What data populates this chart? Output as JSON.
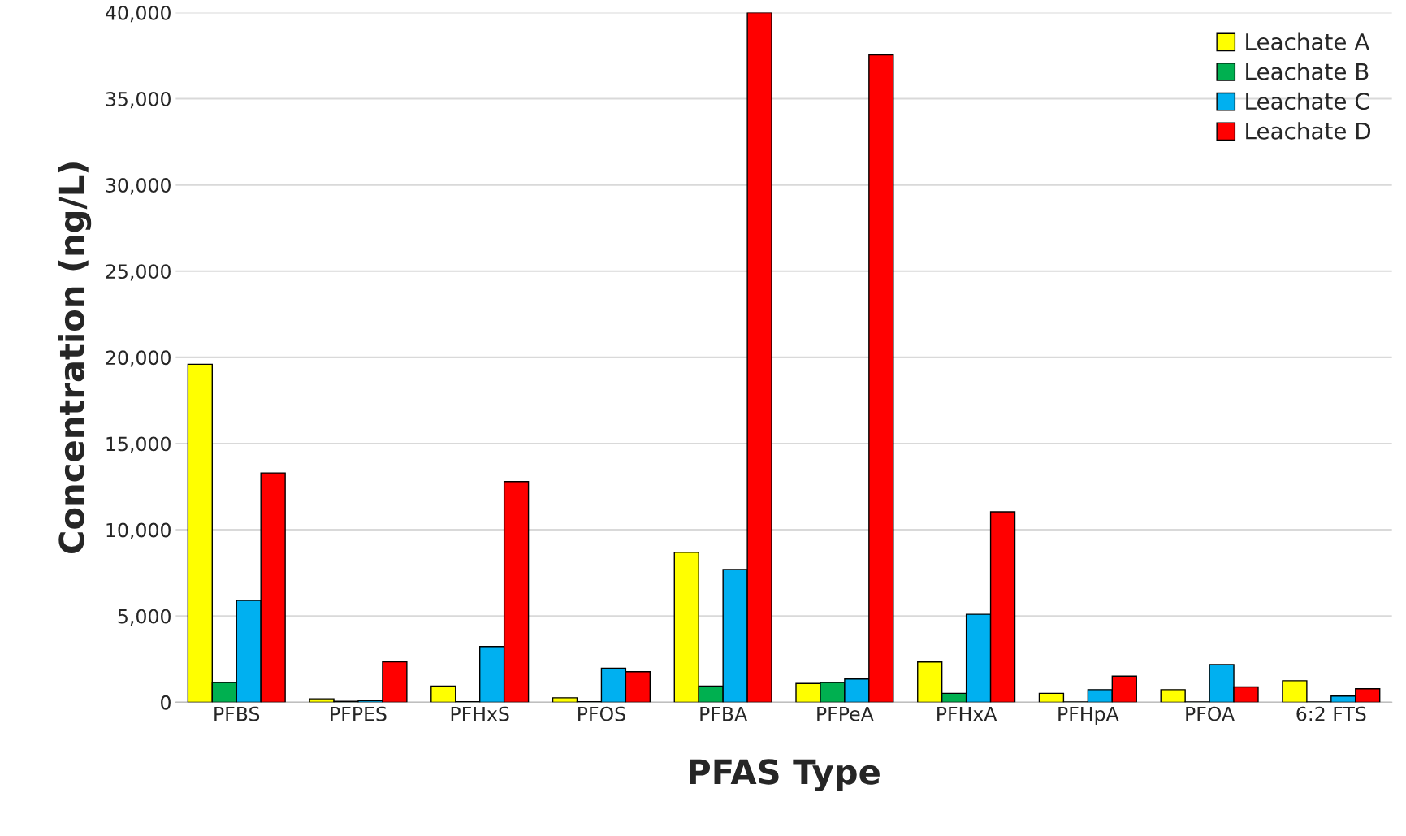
{
  "chart_data": {
    "type": "bar",
    "xlabel": "PFAS Type",
    "ylabel": "Concentration (ng/L)",
    "categories": [
      "PFBS",
      "PFPES",
      "PFHxS",
      "PFOS",
      "PFBA",
      "PFPeA",
      "PFHxA",
      "PFHpA",
      "PFOA",
      "6:2 FTS"
    ],
    "series": [
      {
        "name": "Leachate A",
        "color": "#ffff00",
        "values": [
          19600,
          200,
          940,
          260,
          8700,
          1090,
          2340,
          520,
          730,
          1250
        ]
      },
      {
        "name": "Leachate B",
        "color": "#00b050",
        "values": [
          1150,
          50,
          30,
          30,
          940,
          1150,
          520,
          20,
          20,
          20
        ]
      },
      {
        "name": "Leachate C",
        "color": "#00b0f0",
        "values": [
          5900,
          100,
          3230,
          1980,
          7700,
          1350,
          5100,
          730,
          2190,
          360
        ]
      },
      {
        "name": "Leachate D",
        "color": "#ff0000",
        "values": [
          13300,
          2350,
          12800,
          1770,
          40000,
          37550,
          11040,
          1510,
          890,
          780
        ]
      }
    ],
    "ylim": [
      0,
      40000
    ],
    "yticks": [
      {
        "value": 0,
        "label": "0"
      },
      {
        "value": 5000,
        "label": "5,000"
      },
      {
        "value": 10000,
        "label": "10,000"
      },
      {
        "value": 15000,
        "label": "15,000"
      },
      {
        "value": 20000,
        "label": "20,000"
      },
      {
        "value": 25000,
        "label": "25,000"
      },
      {
        "value": 30000,
        "label": "30,000"
      },
      {
        "value": 35000,
        "label": "35,000"
      },
      {
        "value": 40000,
        "label": "40,000"
      }
    ],
    "grid": "y",
    "legend": "top right"
  }
}
